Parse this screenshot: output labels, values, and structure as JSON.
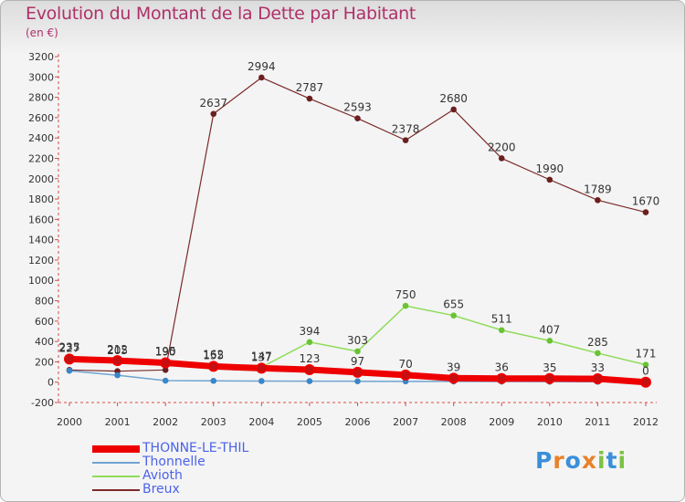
{
  "title": "Evolution du Montant de la Dette par Habitant",
  "subtitle": "(en €)",
  "logo": {
    "letters": [
      "P",
      "r",
      "o",
      "x",
      "i",
      "t",
      "i"
    ],
    "colors": [
      "#3a8fd9",
      "#e8822a",
      "#3a8fd9",
      "#e8822a",
      "#7cc242",
      "#3a8fd9",
      "#7cc242"
    ]
  },
  "chart_data": {
    "type": "line",
    "x": [
      "2000",
      "2001",
      "2002",
      "2003",
      "2004",
      "2005",
      "2006",
      "2007",
      "2008",
      "2009",
      "2010",
      "2011",
      "2012"
    ],
    "ylim": [
      -200,
      3200
    ],
    "yticks": [
      -200,
      0,
      200,
      400,
      600,
      800,
      1000,
      1200,
      1400,
      1600,
      1800,
      2000,
      2200,
      2400,
      2600,
      2800,
      3000,
      3200
    ],
    "grid": false,
    "legend_position": "bottom-left",
    "series": [
      {
        "name": "Breux",
        "color": "#7b2a2a",
        "marker": "#6b1f1f",
        "width": 1.2,
        "values": [
          120,
          108,
          120,
          2637,
          2994,
          2787,
          2593,
          2378,
          2680,
          2200,
          1990,
          1789,
          1670
        ],
        "labels": [
          "",
          "",
          "",
          "2637",
          "2994",
          "2787",
          "2593",
          "2378",
          "2680",
          "2200",
          "1990",
          "1789",
          "1670"
        ]
      },
      {
        "name": "Avioth",
        "color": "#8fdc5a",
        "marker": "#6ac235",
        "width": 1.5,
        "values": [
          235,
          205,
          195,
          162,
          147,
          394,
          303,
          750,
          655,
          511,
          407,
          285,
          171
        ],
        "labels": [
          "235",
          "205",
          "195",
          "162",
          "147",
          "394",
          "303",
          "750",
          "655",
          "511",
          "407",
          "285",
          "171"
        ]
      },
      {
        "name": "Thonnelle",
        "color": "#6fa4d2",
        "marker": "#3a86c8",
        "width": 1.5,
        "values": [
          112,
          68,
          15,
          13,
          11,
          10,
          9,
          8,
          7,
          6,
          5,
          4,
          3
        ],
        "labels": [
          "",
          "",
          "",
          "",
          "",
          "",
          "",
          "",
          "",
          "",
          "",
          "",
          ""
        ]
      },
      {
        "name": "THONNE-LE-THIL",
        "color": "#ee0000",
        "marker": "#c41010",
        "width": 7,
        "values": [
          227,
          212,
          190,
          155,
          137,
          123,
          97,
          70,
          39,
          36,
          35,
          33,
          0
        ],
        "labels": [
          "227",
          "212",
          "190",
          "155",
          "137",
          "123",
          "97",
          "70",
          "39",
          "36",
          "35",
          "33",
          "0"
        ]
      }
    ],
    "legend_order": [
      "THONNE-LE-THIL",
      "Thonnelle",
      "Avioth",
      "Breux"
    ]
  }
}
